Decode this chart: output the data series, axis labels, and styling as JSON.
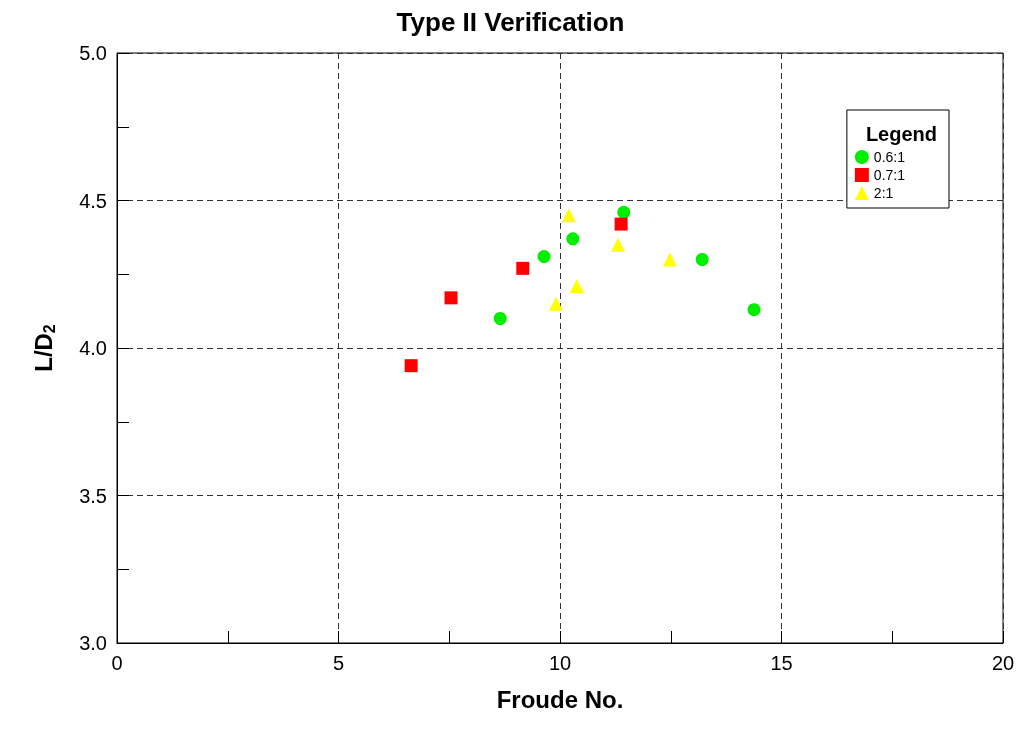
{
  "chart_data": {
    "type": "scatter",
    "title": "Type II Verification",
    "xlabel": "Froude No.",
    "ylabel": "L/D$_{2}$",
    "legend_title": "Legend",
    "legend": "top right",
    "grid": true,
    "xlim": [
      0,
      20
    ],
    "xticks": [
      0,
      {
        "value": 2.5,
        "label": null
      },
      5,
      {
        "value": 7.5,
        "label": null
      },
      10,
      {
        "value": 12.5,
        "label": null
      },
      15,
      {
        "value": 17.5,
        "label": null
      },
      20
    ],
    "ylim": [
      3.0,
      5.0
    ],
    "yticks": [
      {
        "value": 3.0,
        "label": "3.0"
      },
      {
        "value": 3.25,
        "label": null
      },
      {
        "value": 3.5,
        "label": "3.5"
      },
      {
        "value": 3.75,
        "label": null
      },
      {
        "value": 4.0,
        "label": "4.0"
      },
      {
        "value": 4.25,
        "label": null
      },
      {
        "value": 4.5,
        "label": "4.5"
      },
      {
        "value": 4.75,
        "label": null
      },
      {
        "value": 5.0,
        "label": "5.0"
      }
    ],
    "series": [
      {
        "name": "0.6:1",
        "color": "#00ee00",
        "marker": "circle",
        "x": [
          8.65,
          9.64,
          10.29,
          11.44,
          13.21,
          14.38
        ],
        "values": [
          4.1,
          4.31,
          4.37,
          4.46,
          4.3,
          4.13
        ]
      },
      {
        "name": "0.7:1",
        "color": "#ff0000",
        "marker": "square",
        "x": [
          6.64,
          7.54,
          9.16,
          11.38
        ],
        "values": [
          3.94,
          4.17,
          4.27,
          4.42
        ]
      },
      {
        "name": "2:1",
        "color": "#ffff00",
        "marker": "triangle",
        "x": [
          10.2,
          9.91,
          10.38,
          11.31,
          12.48
        ],
        "values": [
          4.45,
          4.15,
          4.21,
          4.35,
          4.3
        ]
      }
    ]
  }
}
